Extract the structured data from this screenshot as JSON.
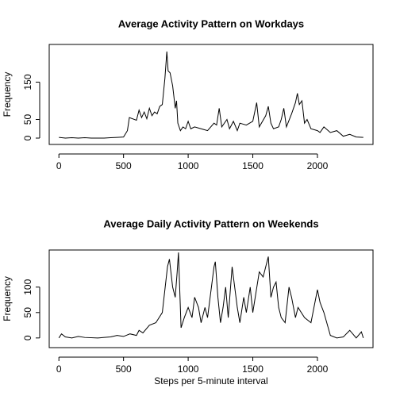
{
  "chart_data": [
    {
      "type": "line",
      "title": "Average Activity Pattern on Workdays",
      "y_label": "Frequency",
      "x": [
        0,
        50,
        100,
        150,
        200,
        250,
        300,
        350,
        400,
        450,
        500,
        530,
        545,
        600,
        620,
        640,
        660,
        680,
        700,
        720,
        740,
        760,
        780,
        800,
        820,
        835,
        845,
        860,
        880,
        900,
        910,
        920,
        940,
        960,
        980,
        1000,
        1020,
        1050,
        1100,
        1150,
        1200,
        1220,
        1240,
        1260,
        1300,
        1320,
        1350,
        1380,
        1400,
        1450,
        1500,
        1530,
        1550,
        1600,
        1620,
        1640,
        1660,
        1700,
        1720,
        1740,
        1760,
        1800,
        1830,
        1845,
        1860,
        1880,
        1900,
        1920,
        1950,
        2000,
        2020,
        2050,
        2100,
        2150,
        2200,
        2250,
        2300,
        2355
      ],
      "series": [
        {
          "name": "workdays",
          "color": "#000000",
          "values": [
            2,
            0,
            1,
            0,
            1,
            0,
            0,
            0,
            1,
            2,
            3,
            20,
            55,
            48,
            75,
            55,
            70,
            52,
            80,
            60,
            70,
            65,
            85,
            90,
            160,
            232,
            180,
            175,
            140,
            80,
            100,
            40,
            20,
            30,
            25,
            45,
            25,
            30,
            25,
            20,
            40,
            35,
            80,
            30,
            50,
            25,
            45,
            20,
            40,
            35,
            45,
            95,
            30,
            60,
            85,
            40,
            25,
            30,
            50,
            80,
            30,
            65,
            95,
            120,
            90,
            100,
            40,
            50,
            25,
            20,
            15,
            30,
            15,
            20,
            5,
            10,
            3,
            2
          ]
        }
      ],
      "xlim": [
        -75,
        2430
      ],
      "xticks": [
        0,
        500,
        1000,
        1500,
        2000
      ],
      "ylim": [
        -17,
        251
      ],
      "yticks": [
        0,
        50,
        150
      ]
    },
    {
      "type": "line",
      "title": "Average Daily Activity Pattern on Weekends",
      "y_label": "Frequency",
      "x_label": "Steps per 5-minute interval",
      "x": [
        0,
        20,
        50,
        100,
        150,
        200,
        300,
        400,
        450,
        500,
        550,
        600,
        620,
        650,
        700,
        750,
        800,
        840,
        855,
        880,
        900,
        915,
        925,
        945,
        970,
        1000,
        1030,
        1050,
        1080,
        1100,
        1130,
        1150,
        1200,
        1210,
        1230,
        1250,
        1270,
        1290,
        1310,
        1340,
        1360,
        1380,
        1400,
        1430,
        1450,
        1480,
        1500,
        1550,
        1580,
        1600,
        1620,
        1640,
        1660,
        1680,
        1700,
        1720,
        1750,
        1780,
        1800,
        1830,
        1850,
        1900,
        1950,
        2000,
        2020,
        2050,
        2100,
        2150,
        2200,
        2250,
        2300,
        2340,
        2355
      ],
      "series": [
        {
          "name": "weekends",
          "color": "#000000",
          "values": [
            0,
            8,
            2,
            0,
            3,
            1,
            0,
            2,
            5,
            3,
            8,
            5,
            15,
            10,
            25,
            30,
            50,
            140,
            155,
            100,
            80,
            130,
            168,
            20,
            40,
            60,
            40,
            80,
            60,
            30,
            60,
            40,
            140,
            150,
            80,
            30,
            60,
            100,
            40,
            140,
            100,
            60,
            30,
            80,
            50,
            100,
            50,
            130,
            120,
            140,
            160,
            80,
            100,
            110,
            60,
            40,
            30,
            100,
            80,
            40,
            60,
            40,
            30,
            95,
            70,
            50,
            5,
            0,
            2,
            15,
            0,
            12,
            0
          ]
        }
      ],
      "xlim": [
        -75,
        2430
      ],
      "xticks": [
        0,
        500,
        1000,
        1500,
        2000
      ],
      "ylim": [
        -19,
        173
      ],
      "yticks": [
        0,
        50,
        100
      ]
    }
  ]
}
